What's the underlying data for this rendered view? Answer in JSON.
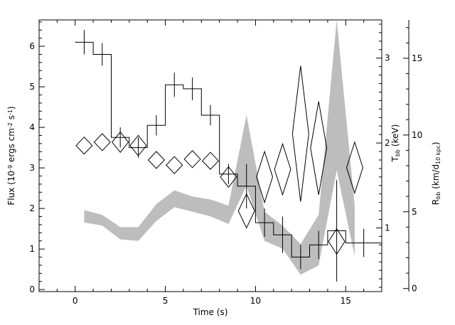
{
  "chart_data": {
    "type": "line",
    "title": "",
    "xlabel": "Time (s)",
    "xlim": [
      -2.0,
      17.0
    ],
    "xticks": [
      0,
      5,
      10,
      15
    ],
    "axes": {
      "flux": {
        "label_parts": [
          "Flux (10",
          "-9",
          " ergs cm",
          "-2",
          " s",
          "-1",
          ")"
        ],
        "ylim": [
          -0.05,
          6.65
        ],
        "ticks": [
          0,
          1,
          2,
          3,
          4,
          5,
          6
        ]
      },
      "tbb": {
        "label_parts": [
          "T",
          "bb",
          " (keV)"
        ],
        "ylim": [
          0.25,
          3.45
        ],
        "ticks": [
          1,
          2,
          3
        ]
      },
      "rbb": {
        "label_parts": [
          "R",
          "bb",
          " (km/d",
          "10 kpc",
          ")"
        ],
        "ylim": [
          -0.2,
          17.5
        ],
        "ticks": [
          0,
          5,
          10,
          15
        ]
      }
    },
    "series": [
      {
        "axis": "flux",
        "style": "histogram",
        "bins": [
          {
            "x0": 0.0,
            "x1": 1.0,
            "y": 6.1,
            "err": 0.3
          },
          {
            "x0": 1.0,
            "x1": 2.0,
            "y": 5.8,
            "err": 0.28
          },
          {
            "x0": 2.0,
            "x1": 3.0,
            "y": 3.75,
            "err": 0.25
          },
          {
            "x0": 3.0,
            "x1": 4.0,
            "y": 3.5,
            "err": 0.25
          },
          {
            "x0": 4.0,
            "x1": 5.0,
            "y": 4.05,
            "err": 0.25
          },
          {
            "x0": 5.0,
            "x1": 6.0,
            "y": 5.05,
            "err": 0.3
          },
          {
            "x0": 6.0,
            "x1": 7.0,
            "y": 4.95,
            "err": 0.28
          },
          {
            "x0": 7.0,
            "x1": 8.0,
            "y": 4.3,
            "err": 0.25
          },
          {
            "x0": 8.0,
            "x1": 9.0,
            "y": 2.85,
            "err": 0.25
          },
          {
            "x0": 9.0,
            "x1": 10.0,
            "y": 2.55,
            "err": 0.55
          },
          {
            "x0": 10.0,
            "x1": 11.0,
            "y": 1.65,
            "err": 0.35
          },
          {
            "x0": 11.0,
            "x1": 12.0,
            "y": 1.35,
            "err": 0.45
          },
          {
            "x0": 12.0,
            "x1": 13.0,
            "y": 0.8,
            "err": 0.3
          },
          {
            "x0": 13.0,
            "x1": 14.0,
            "y": 1.1,
            "err": 0.35
          },
          {
            "x0": 14.0,
            "x1": 15.0,
            "y": 1.45,
            "err": 1.25
          },
          {
            "x0": 15.0,
            "x1": 17.0,
            "y": 1.15,
            "err": 0.35
          }
        ]
      },
      {
        "axis": "tbb",
        "style": "diamond",
        "points": [
          {
            "x": 0.5,
            "y": 1.97,
            "xerr": 0.45,
            "yerr": 0.1
          },
          {
            "x": 1.5,
            "y": 2.01,
            "xerr": 0.45,
            "yerr": 0.1
          },
          {
            "x": 2.5,
            "y": 2.01,
            "xerr": 0.45,
            "yerr": 0.12
          },
          {
            "x": 3.5,
            "y": 1.97,
            "xerr": 0.45,
            "yerr": 0.12
          },
          {
            "x": 4.5,
            "y": 1.8,
            "xerr": 0.45,
            "yerr": 0.1
          },
          {
            "x": 5.5,
            "y": 1.74,
            "xerr": 0.45,
            "yerr": 0.1
          },
          {
            "x": 6.5,
            "y": 1.81,
            "xerr": 0.45,
            "yerr": 0.1
          },
          {
            "x": 7.5,
            "y": 1.79,
            "xerr": 0.45,
            "yerr": 0.1
          },
          {
            "x": 8.5,
            "y": 1.6,
            "xerr": 0.45,
            "yerr": 0.12
          },
          {
            "x": 9.5,
            "y": 1.2,
            "xerr": 0.45,
            "yerr": 0.2
          },
          {
            "x": 10.5,
            "y": 1.6,
            "xerr": 0.45,
            "yerr": 0.3
          },
          {
            "x": 11.5,
            "y": 1.69,
            "xerr": 0.45,
            "yerr": 0.3
          },
          {
            "x": 12.5,
            "y": 2.11,
            "xerr": 0.45,
            "yerr": 0.8
          },
          {
            "x": 13.5,
            "y": 1.94,
            "xerr": 0.45,
            "yerr": 0.55
          },
          {
            "x": 14.5,
            "y": 0.84,
            "xerr": 0.45,
            "yerr": 0.15
          },
          {
            "x": 15.5,
            "y": 1.71,
            "xerr": 0.45,
            "yerr": 0.3
          }
        ]
      },
      {
        "axis": "rbb",
        "style": "band",
        "color": "#bdbdbd",
        "x": [
          0.5,
          1.5,
          2.5,
          3.5,
          4.5,
          5.5,
          6.5,
          7.5,
          8.5,
          9.5,
          10.5,
          11.5,
          12.5,
          13.5,
          14.5,
          15.5
        ],
        "lower": [
          4.3,
          4.1,
          3.2,
          3.1,
          4.4,
          5.3,
          5.0,
          4.7,
          4.2,
          6.7,
          3.1,
          2.6,
          0.9,
          1.5,
          7.7,
          2.1
        ],
        "upper": [
          5.1,
          4.8,
          4.0,
          4.0,
          5.5,
          6.4,
          6.0,
          5.8,
          5.4,
          11.3,
          5.0,
          4.1,
          2.9,
          4.8,
          17.5,
          5.4
        ]
      }
    ]
  }
}
